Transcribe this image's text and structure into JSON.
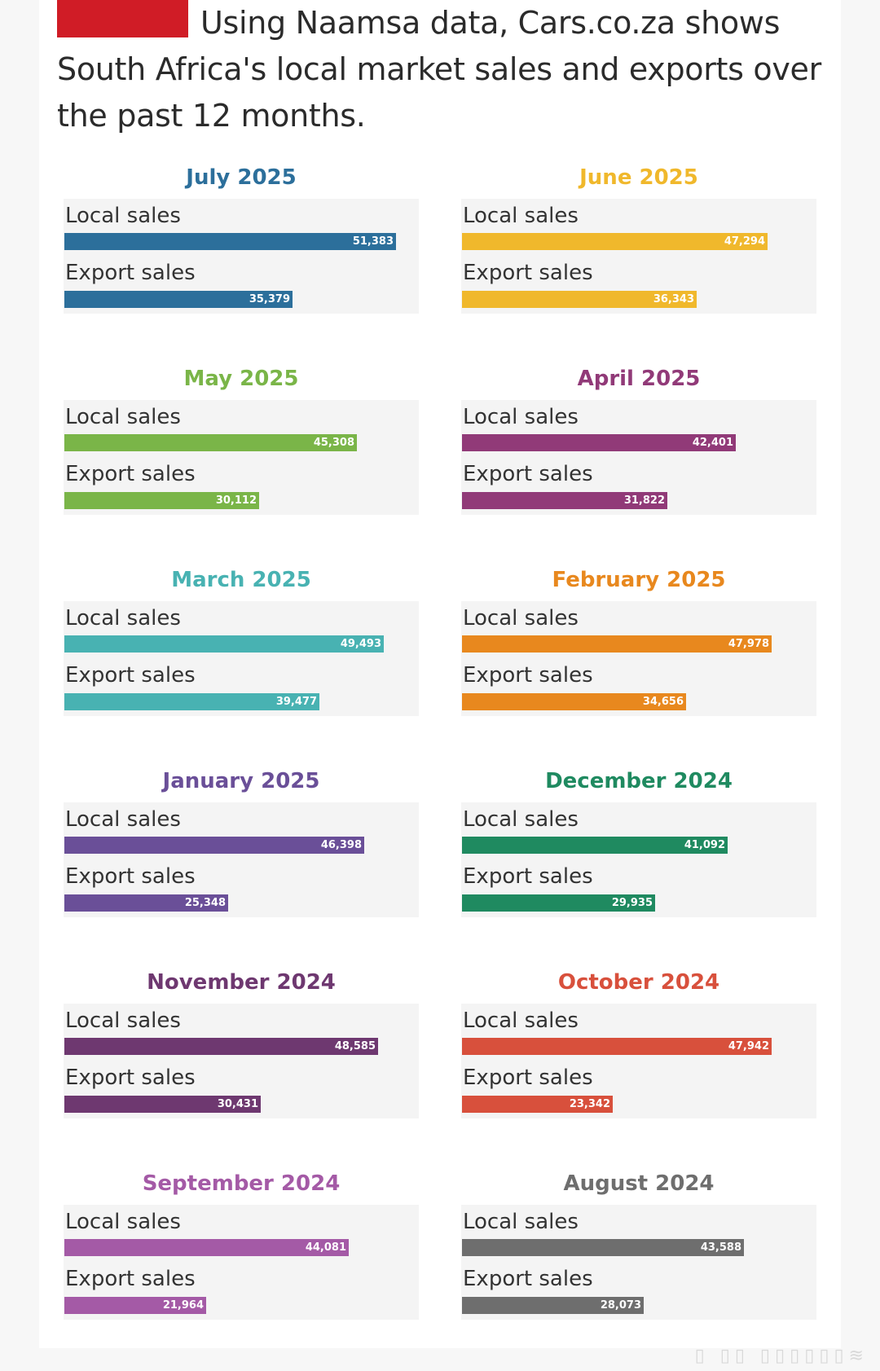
{
  "headline": "Using Naamsa data, Cars.co.za shows South Africa's local market sales and exports over the past 12 months.",
  "watermark": "▯ ▯▯ ▯▯▯▯▯▯≋",
  "labels": {
    "local": "Local sales",
    "export": "Export sales"
  },
  "chart_data": {
    "type": "bar",
    "orientation": "horizontal",
    "x_max": 55000,
    "grid": false,
    "panels": [
      {
        "title": "July 2025",
        "color": "#2c6f9b",
        "local": 51383,
        "local_label": "51,383",
        "export": 35379,
        "export_label": "35,379"
      },
      {
        "title": "June 2025",
        "color": "#f0b82c",
        "local": 47294,
        "local_label": "47,294",
        "export": 36343,
        "export_label": "36,343"
      },
      {
        "title": "May 2025",
        "color": "#7ab548",
        "local": 45308,
        "local_label": "45,308",
        "export": 30112,
        "export_label": "30,112"
      },
      {
        "title": "April 2025",
        "color": "#913a78",
        "local": 42401,
        "local_label": "42,401",
        "export": 31822,
        "export_label": "31,822"
      },
      {
        "title": "March 2025",
        "color": "#48b2b2",
        "local": 49493,
        "local_label": "49,493",
        "export": 39477,
        "export_label": "39,477"
      },
      {
        "title": "February 2025",
        "color": "#e8881e",
        "local": 47978,
        "local_label": "47,978",
        "export": 34656,
        "export_label": "34,656"
      },
      {
        "title": "January 2025",
        "color": "#6a4f98",
        "local": 46398,
        "local_label": "46,398",
        "export": 25348,
        "export_label": "25,348"
      },
      {
        "title": "December 2024",
        "color": "#1f8a60",
        "local": 41092,
        "local_label": "41,092",
        "export": 29935,
        "export_label": "29,935"
      },
      {
        "title": "November 2024",
        "color": "#6e3870",
        "local": 48585,
        "local_label": "48,585",
        "export": 30431,
        "export_label": "30,431"
      },
      {
        "title": "October 2024",
        "color": "#d8503c",
        "local": 47942,
        "local_label": "47,942",
        "export": 23342,
        "export_label": "23,342"
      },
      {
        "title": "September 2024",
        "color": "#a45aa6",
        "local": 44081,
        "local_label": "44,081",
        "export": 21964,
        "export_label": "21,964"
      },
      {
        "title": "August 2024",
        "color": "#6e6e6e",
        "local": 43588,
        "local_label": "43,588",
        "export": 28073,
        "export_label": "28,073"
      }
    ]
  }
}
